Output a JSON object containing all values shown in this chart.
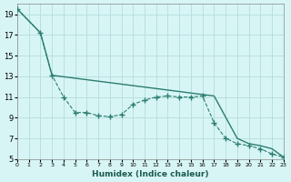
{
  "xlabel": "Humidex (Indice chaleur)",
  "background_color": "#d8f5f5",
  "grid_color": "#b8e0e0",
  "line_color": "#2a7d6f",
  "line1_x": [
    0,
    2,
    3,
    4,
    5,
    6,
    7,
    8,
    9,
    10,
    11,
    12,
    13,
    14,
    15,
    16,
    17,
    18,
    19,
    20,
    21,
    22,
    23
  ],
  "line1_y": [
    19.5,
    17.2,
    13.1,
    11.0,
    9.5,
    9.5,
    9.2,
    9.1,
    9.3,
    10.3,
    10.7,
    11.0,
    11.1,
    11.0,
    11.0,
    11.1,
    8.5,
    7.0,
    6.5,
    6.3,
    6.0,
    5.5,
    5.2
  ],
  "line2_x": [
    0,
    2,
    3,
    17,
    19,
    20,
    21,
    22,
    23
  ],
  "line2_y": [
    19.5,
    17.2,
    13.1,
    11.1,
    7.0,
    6.5,
    6.3,
    6.0,
    5.2
  ],
  "xmin": 0,
  "xmax": 23,
  "ymin": 5,
  "ymax": 20,
  "yticks": [
    5,
    7,
    9,
    11,
    13,
    15,
    17,
    19
  ]
}
